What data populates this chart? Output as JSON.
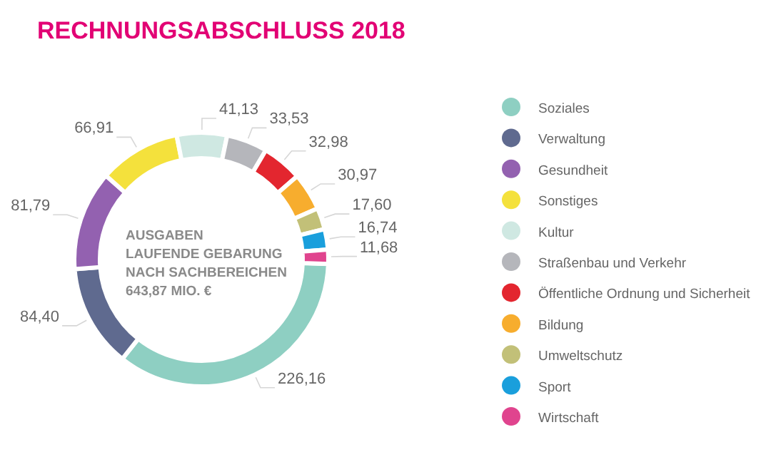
{
  "chart_data": {
    "type": "donut",
    "title": "RECHNUNGSABSCHLUSS 2018",
    "categories": [
      "Soziales",
      "Verwaltung",
      "Gesundheit",
      "Sonstiges",
      "Kultur",
      "Straßenbau und Verkehr",
      "Öffentliche Ordnung und Sicherheit",
      "Bildung",
      "Umweltschutz",
      "Sport",
      "Wirtschaft"
    ],
    "values": [
      226.16,
      84.4,
      81.79,
      66.91,
      41.13,
      33.53,
      32.98,
      30.97,
      17.6,
      16.74,
      11.68
    ],
    "value_labels": [
      "226,16",
      "84,40",
      "81,79",
      "66,91",
      "41,13",
      "33,53",
      "32,98",
      "30,97",
      "17,60",
      "16,74",
      "11,68"
    ],
    "colors": [
      "#8ecfc2",
      "#5f6a8f",
      "#9361b0",
      "#f4e13c",
      "#cfe8e2",
      "#b5b6bb",
      "#e3262f",
      "#f7ad2e",
      "#c2c078",
      "#1a9fdc",
      "#e0448e"
    ],
    "annotations": [
      "AUSGABEN",
      "LAUFENDE GEBARUNG",
      "NACH SACHBEREICHEN",
      "643,87 MIO. €"
    ],
    "legend": "right"
  }
}
